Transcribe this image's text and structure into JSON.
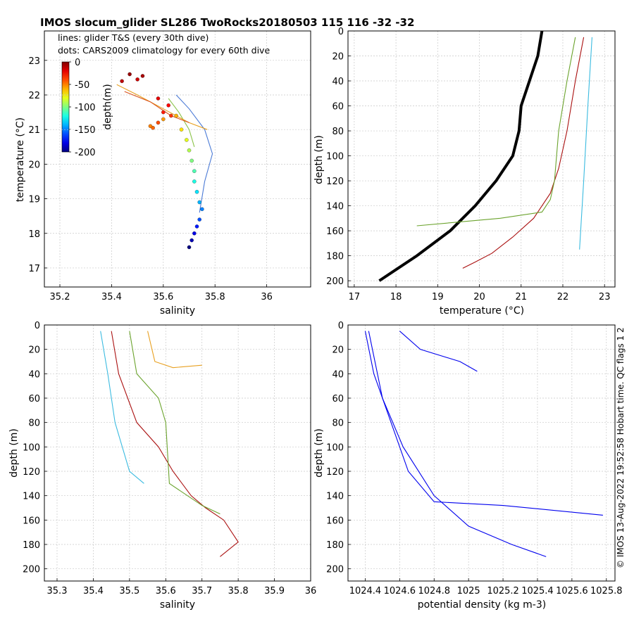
{
  "title": "IMOS slocum_glider SL286 TwoRocks20180503 115  116  -32  -32",
  "side_text": "© IMOS 13-Aug-2022 19:52:58 Hobart time. QC flags 1  2",
  "chart_data": [
    {
      "type": "scatter",
      "name": "ts",
      "xlabel": "salinity",
      "ylabel": "temperature (°C)",
      "xlim": [
        35.14,
        36.17
      ],
      "ylim": [
        16.45,
        23.85
      ],
      "xticks": [
        35.2,
        35.4,
        35.6,
        35.8,
        36
      ],
      "xtick_labels": [
        "35.2",
        "35.4",
        "35.6",
        "35.8",
        "36"
      ],
      "yticks": [
        17,
        18,
        19,
        20,
        21,
        22,
        23
      ],
      "ytick_labels": [
        "17",
        "18",
        "19",
        "20",
        "21",
        "22",
        "23"
      ],
      "annotations": [
        "lines: glider T&S (every 30th dive)",
        "dots: CARS2009 climatology for every 60th dive"
      ],
      "colorbar": {
        "label": "depth(m)",
        "ticks": [
          0,
          -50,
          -100,
          -150,
          -200
        ],
        "tick_labels": [
          "0",
          "-50",
          "-100",
          "-150",
          "-200"
        ],
        "range": [
          -200,
          0
        ]
      },
      "climatology_dots": [
        {
          "depth": 5,
          "s": 35.47,
          "t": 22.6
        },
        {
          "depth": 8,
          "s": 35.52,
          "t": 22.55
        },
        {
          "depth": 12,
          "s": 35.44,
          "t": 22.4
        },
        {
          "depth": 15,
          "s": 35.5,
          "t": 22.45
        },
        {
          "depth": 20,
          "s": 35.58,
          "t": 21.9
        },
        {
          "depth": 25,
          "s": 35.62,
          "t": 21.7
        },
        {
          "depth": 30,
          "s": 35.6,
          "t": 21.5
        },
        {
          "depth": 35,
          "s": 35.63,
          "t": 21.4
        },
        {
          "depth": 40,
          "s": 35.58,
          "t": 21.2
        },
        {
          "depth": 45,
          "s": 35.56,
          "t": 21.05
        },
        {
          "depth": 50,
          "s": 35.55,
          "t": 21.1
        },
        {
          "depth": 55,
          "s": 35.6,
          "t": 21.3
        },
        {
          "depth": 60,
          "s": 35.65,
          "t": 21.4
        },
        {
          "depth": 70,
          "s": 35.67,
          "t": 21.0
        },
        {
          "depth": 80,
          "s": 35.69,
          "t": 20.7
        },
        {
          "depth": 90,
          "s": 35.7,
          "t": 20.4
        },
        {
          "depth": 100,
          "s": 35.71,
          "t": 20.1
        },
        {
          "depth": 110,
          "s": 35.72,
          "t": 19.8
        },
        {
          "depth": 120,
          "s": 35.72,
          "t": 19.5
        },
        {
          "depth": 130,
          "s": 35.73,
          "t": 19.2
        },
        {
          "depth": 140,
          "s": 35.74,
          "t": 18.9
        },
        {
          "depth": 150,
          "s": 35.75,
          "t": 18.7
        },
        {
          "depth": 160,
          "s": 35.74,
          "t": 18.4
        },
        {
          "depth": 170,
          "s": 35.73,
          "t": 18.2
        },
        {
          "depth": 180,
          "s": 35.72,
          "t": 18.0
        },
        {
          "depth": 190,
          "s": 35.71,
          "t": 17.8
        },
        {
          "depth": 200,
          "s": 35.7,
          "t": 17.6
        }
      ],
      "lines": [
        {
          "color": "#4c7bd6",
          "s": [
            35.65,
            35.7,
            35.76,
            35.79,
            35.76,
            35.74
          ],
          "t": [
            22.0,
            21.6,
            21.0,
            20.3,
            19.5,
            18.6
          ]
        },
        {
          "color": "#8bc34a",
          "s": [
            35.62,
            35.66,
            35.7,
            35.72
          ],
          "t": [
            21.9,
            21.5,
            21.0,
            20.5
          ]
        },
        {
          "color": "#e8a020",
          "s": [
            35.42,
            35.5,
            35.6,
            35.7,
            35.77
          ],
          "t": [
            22.3,
            22.0,
            21.6,
            21.2,
            21.0
          ]
        },
        {
          "color": "#d9531e",
          "s": [
            35.45,
            35.55,
            35.63,
            35.7
          ],
          "t": [
            22.1,
            21.8,
            21.4,
            21.2
          ]
        }
      ]
    },
    {
      "type": "line",
      "name": "temperature-depth",
      "xlabel": "temperature (°C)",
      "ylabel": "depth (m)",
      "xlim": [
        16.85,
        23.25
      ],
      "ylim": [
        0,
        205
      ],
      "xticks": [
        17,
        18,
        19,
        20,
        21,
        22,
        23
      ],
      "xtick_labels": [
        "17",
        "18",
        "19",
        "20",
        "21",
        "22",
        "23"
      ],
      "yticks": [
        0,
        20,
        40,
        60,
        80,
        100,
        120,
        140,
        160,
        180,
        200
      ],
      "ytick_labels": [
        "0",
        "20",
        "40",
        "60",
        "80",
        "100",
        "120",
        "140",
        "160",
        "180",
        "200"
      ],
      "series": [
        {
          "name": "climatology",
          "color": "#000000",
          "x": [
            21.5,
            21.4,
            21.2,
            21.0,
            20.95,
            20.8,
            20.4,
            19.9,
            19.3,
            18.5,
            17.6
          ],
          "y": [
            0,
            20,
            40,
            60,
            80,
            100,
            120,
            140,
            160,
            180,
            200
          ]
        },
        {
          "name": "dive-red",
          "color": "#aa1010",
          "x": [
            22.5,
            22.3,
            22.1,
            21.9,
            21.7,
            21.3,
            20.8,
            20.3,
            19.9,
            19.6
          ],
          "y": [
            5,
            40,
            80,
            110,
            130,
            150,
            165,
            178,
            185,
            190
          ]
        },
        {
          "name": "dive-green",
          "color": "#6ba32d",
          "x": [
            22.3,
            22.1,
            21.9,
            21.8,
            21.7,
            21.5,
            20.5,
            18.5
          ],
          "y": [
            5,
            40,
            80,
            120,
            135,
            145,
            150,
            156
          ]
        },
        {
          "name": "dive-cyan",
          "color": "#3bbbe0",
          "x": [
            22.7,
            22.6,
            22.5,
            22.4
          ],
          "y": [
            5,
            60,
            120,
            175
          ]
        }
      ]
    },
    {
      "type": "line",
      "name": "salinity-depth",
      "xlabel": "salinity",
      "ylabel": "depth (m)",
      "xlim": [
        35.265,
        36.0
      ],
      "ylim": [
        0,
        210
      ],
      "xticks": [
        35.3,
        35.4,
        35.5,
        35.6,
        35.7,
        35.8,
        35.9,
        36
      ],
      "xtick_labels": [
        "35.3",
        "35.4",
        "35.5",
        "35.6",
        "35.7",
        "35.8",
        "35.9",
        "36"
      ],
      "yticks": [
        0,
        20,
        40,
        60,
        80,
        100,
        120,
        140,
        160,
        180,
        200
      ],
      "ytick_labels": [
        "0",
        "20",
        "40",
        "60",
        "80",
        "100",
        "120",
        "140",
        "160",
        "180",
        "200"
      ],
      "series": [
        {
          "name": "dive-red",
          "color": "#aa1010",
          "x": [
            35.45,
            35.47,
            35.52,
            35.58,
            35.62,
            35.67,
            35.71,
            35.76,
            35.8,
            35.75
          ],
          "y": [
            5,
            40,
            80,
            100,
            120,
            140,
            150,
            160,
            178,
            190
          ]
        },
        {
          "name": "dive-green",
          "color": "#6ba32d",
          "x": [
            35.5,
            35.52,
            35.58,
            35.6,
            35.61,
            35.7,
            35.75
          ],
          "y": [
            5,
            40,
            60,
            80,
            130,
            148,
            155
          ]
        },
        {
          "name": "dive-orange",
          "color": "#e8a020",
          "x": [
            35.55,
            35.57,
            35.62,
            35.7
          ],
          "y": [
            5,
            30,
            35,
            33
          ]
        },
        {
          "name": "dive-cyan",
          "color": "#3bbbe0",
          "x": [
            35.42,
            35.44,
            35.46,
            35.5,
            35.54
          ],
          "y": [
            5,
            40,
            80,
            120,
            130
          ]
        }
      ]
    },
    {
      "type": "line",
      "name": "density-depth",
      "xlabel": "potential density (kg m-3)",
      "ylabel": "depth (m)",
      "xlim": [
        1024.3,
        1025.85
      ],
      "ylim": [
        0,
        210
      ],
      "xticks": [
        1024.4,
        1024.6,
        1024.8,
        1025,
        1025.2,
        1025.4,
        1025.6,
        1025.8
      ],
      "xtick_labels": [
        "1024.4",
        "1024.6",
        "1024.8",
        "1025",
        "1025.2",
        "1025.4",
        "1025.6",
        "1025.8"
      ],
      "yticks": [
        0,
        20,
        40,
        60,
        80,
        100,
        120,
        140,
        160,
        180,
        200
      ],
      "ytick_labels": [
        "0",
        "20",
        "40",
        "60",
        "80",
        "100",
        "120",
        "140",
        "160",
        "180",
        "200"
      ],
      "series": [
        {
          "name": "dive-1",
          "color": "#0000ee",
          "x": [
            1024.4,
            1024.45,
            1024.55,
            1024.65,
            1024.8,
            1025.2,
            1025.78
          ],
          "y": [
            5,
            40,
            80,
            120,
            145,
            148,
            156
          ]
        },
        {
          "name": "dive-2",
          "color": "#0000ee",
          "x": [
            1024.42,
            1024.5,
            1024.62,
            1024.8,
            1025.0,
            1025.25,
            1025.45
          ],
          "y": [
            5,
            60,
            100,
            140,
            165,
            180,
            190
          ]
        },
        {
          "name": "dive-3",
          "color": "#0000ee",
          "x": [
            1024.6,
            1024.72,
            1024.95,
            1025.05
          ],
          "y": [
            5,
            20,
            30,
            38
          ]
        }
      ]
    }
  ]
}
